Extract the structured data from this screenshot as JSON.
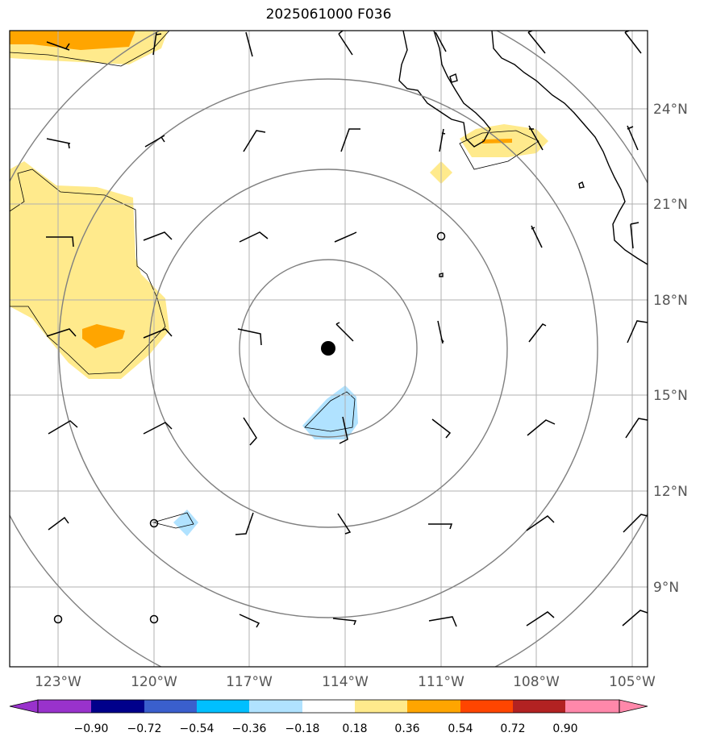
{
  "title": "2025061000 F036",
  "lon_labels": [
    "123°W",
    "120°W",
    "117°W",
    "114°W",
    "111°W",
    "108°W",
    "105°W"
  ],
  "lat_labels": [
    "24°N",
    "21°N",
    "18°N",
    "15°N",
    "12°N",
    "9°N"
  ],
  "colorbar": {
    "tick_labels": [
      "−0.90",
      "−0.72",
      "−0.54",
      "−0.36",
      "−0.18",
      "0.18",
      "0.36",
      "0.54",
      "0.72",
      "0.90"
    ],
    "colors": [
      "#9932cc",
      "#00008b",
      "#3a5fcd",
      "#00bfff",
      "#b0e2ff",
      "#ffffff",
      "#ffea8c",
      "#ffa500",
      "#ff4500",
      "#b22222",
      "#ff88aa"
    ]
  },
  "storm_center": {
    "lon": -114.5,
    "lat": 16.6
  },
  "range_ring_color": "#808080",
  "fill_colors": {
    "light_yellow": "#ffea8c",
    "orange": "#ffa500",
    "light_blue": "#b0e2ff"
  }
}
